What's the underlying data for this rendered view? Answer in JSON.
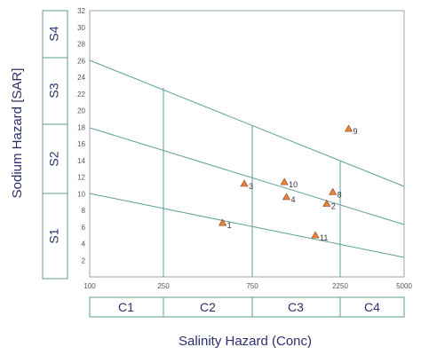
{
  "chart_data": {
    "type": "scatter",
    "title": "",
    "xlabel": "Salinity Hazard (Conc)",
    "ylabel": "Sodium Hazard [SAR]",
    "x_ticks": [
      "100",
      "250",
      "750",
      "2250",
      "5000"
    ],
    "y_ticks": [
      "2",
      "4",
      "6",
      "8",
      "10",
      "12",
      "14",
      "16",
      "18",
      "20",
      "22",
      "24",
      "26",
      "28",
      "30",
      "32"
    ],
    "ylim": [
      0,
      32
    ],
    "x_scale": "log (classification breaks)",
    "grid": false,
    "salinity_classes": [
      "C1",
      "C2",
      "C3",
      "C4"
    ],
    "sodium_classes": [
      "S1",
      "S2",
      "S3",
      "S4"
    ],
    "points": [
      {
        "label": "1",
        "x": 520,
        "y": 6.5
      },
      {
        "label": "2",
        "x": 1900,
        "y": 8.8
      },
      {
        "label": "3",
        "x": 680,
        "y": 11.2
      },
      {
        "label": "4",
        "x": 1150,
        "y": 9.6
      },
      {
        "label": "8",
        "x": 2050,
        "y": 10.2
      },
      {
        "label": "9",
        "x": 2500,
        "y": 17.8
      },
      {
        "label": "10",
        "x": 1120,
        "y": 11.4
      },
      {
        "label": "11",
        "x": 1650,
        "y": 5.0
      }
    ]
  },
  "colors": {
    "axis": "#9aa4b8",
    "classification_lines": "#5f9e96",
    "marker_fill": "#e8843a",
    "marker_stroke": "#8a3a10",
    "text": "#2b2f6b",
    "tick_text": "#555555"
  }
}
